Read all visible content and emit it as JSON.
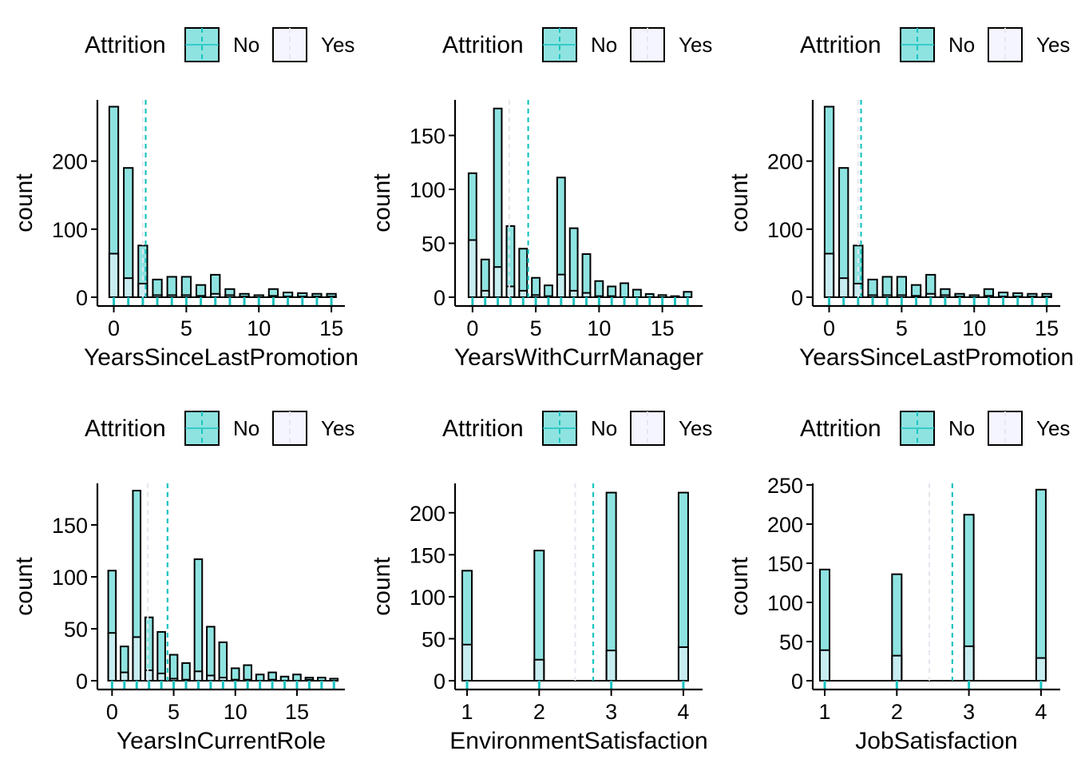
{
  "colors": {
    "no_fill": "#8ee3e0",
    "no_line": "#19c3c0",
    "yes_fill": "#f5f5ff",
    "bar_stroke": "#000000"
  },
  "chart_data": [
    {
      "type": "bar",
      "xlabel": "YearsSinceLastPromotion",
      "ylabel": "count",
      "legend_title": "Attrition",
      "legend_position": "top",
      "grid": false,
      "xlim": [
        -0.8,
        15.6
      ],
      "ylim": [
        0,
        290
      ],
      "x_ticks": [
        0,
        5,
        10,
        15
      ],
      "y_ticks": [
        0,
        100,
        200
      ],
      "x": [
        0,
        1,
        2,
        3,
        4,
        5,
        6,
        7,
        8,
        9,
        10,
        11,
        12,
        13,
        14,
        15
      ],
      "series": [
        {
          "name": "No",
          "values": [
            280,
            190,
            76,
            26,
            30,
            30,
            18,
            33,
            12,
            5,
            3,
            12,
            7,
            6,
            5,
            5
          ],
          "mean": 2.2
        },
        {
          "name": "Yes",
          "values": [
            64,
            28,
            20,
            3,
            3,
            3,
            2,
            5,
            3,
            1,
            0,
            2,
            1,
            1,
            1,
            1
          ],
          "mean": 2.0
        }
      ]
    },
    {
      "type": "bar",
      "xlabel": "YearsWithCurrManager",
      "ylabel": "count",
      "legend_title": "Attrition",
      "legend_position": "top",
      "grid": false,
      "xlim": [
        -1,
        17.8
      ],
      "ylim": [
        0,
        183
      ],
      "x_ticks": [
        0,
        5,
        10,
        15
      ],
      "y_ticks": [
        0,
        50,
        100,
        150
      ],
      "x": [
        0,
        1,
        2,
        3,
        4,
        5,
        6,
        7,
        8,
        9,
        10,
        11,
        12,
        13,
        14,
        15,
        16,
        17
      ],
      "series": [
        {
          "name": "No",
          "values": [
            115,
            35,
            175,
            66,
            45,
            18,
            11,
            111,
            64,
            40,
            15,
            10,
            13,
            7,
            3,
            2,
            1,
            5
          ],
          "mean": 4.4
        },
        {
          "name": "Yes",
          "values": [
            53,
            6,
            28,
            10,
            6,
            2,
            1,
            21,
            6,
            4,
            1,
            1,
            0,
            0,
            0,
            0,
            0,
            0
          ],
          "mean": 2.9
        }
      ]
    },
    {
      "type": "bar",
      "xlabel": "YearsSinceLastPromotion",
      "ylabel": "count",
      "legend_title": "Attrition",
      "legend_position": "top",
      "grid": false,
      "xlim": [
        -0.8,
        15.6
      ],
      "ylim": [
        0,
        290
      ],
      "x_ticks": [
        0,
        5,
        10,
        15
      ],
      "y_ticks": [
        0,
        100,
        200
      ],
      "x": [
        0,
        1,
        2,
        3,
        4,
        5,
        6,
        7,
        8,
        9,
        10,
        11,
        12,
        13,
        14,
        15
      ],
      "series": [
        {
          "name": "No",
          "values": [
            280,
            190,
            76,
            26,
            30,
            30,
            18,
            33,
            12,
            5,
            3,
            12,
            7,
            6,
            5,
            5
          ],
          "mean": 2.2
        },
        {
          "name": "Yes",
          "values": [
            64,
            28,
            20,
            3,
            3,
            3,
            2,
            5,
            3,
            1,
            0,
            2,
            1,
            1,
            1,
            1
          ],
          "mean": 2.0
        }
      ]
    },
    {
      "type": "bar",
      "xlabel": "YearsInCurrentRole",
      "ylabel": "count",
      "legend_title": "Attrition",
      "legend_position": "top",
      "grid": false,
      "xlim": [
        -0.8,
        18.5
      ],
      "ylim": [
        0,
        190
      ],
      "x_ticks": [
        0,
        5,
        10,
        15
      ],
      "y_ticks": [
        0,
        50,
        100,
        150
      ],
      "x": [
        0,
        1,
        2,
        3,
        4,
        5,
        6,
        7,
        8,
        9,
        10,
        11,
        12,
        13,
        14,
        15,
        16,
        17,
        18
      ],
      "series": [
        {
          "name": "No",
          "values": [
            106,
            33,
            183,
            61,
            47,
            25,
            17,
            117,
            52,
            37,
            12,
            15,
            6,
            8,
            4,
            6,
            3,
            3,
            2
          ],
          "mean": 4.5
        },
        {
          "name": "Yes",
          "values": [
            46,
            8,
            42,
            10,
            7,
            2,
            1,
            9,
            5,
            3,
            1,
            1,
            0,
            1,
            0,
            0,
            1,
            0,
            0
          ],
          "mean": 2.9
        }
      ]
    },
    {
      "type": "bar",
      "xlabel": "EnvironmentSatisfaction",
      "ylabel": "count",
      "legend_title": "Attrition",
      "legend_position": "top",
      "grid": false,
      "xlim": [
        0.9,
        4.2
      ],
      "ylim": [
        0,
        235
      ],
      "x_ticks": [
        1,
        2,
        3,
        4
      ],
      "y_ticks": [
        0,
        50,
        100,
        150,
        200
      ],
      "x": [
        1,
        2,
        3,
        4
      ],
      "series": [
        {
          "name": "No",
          "values": [
            131,
            155,
            224,
            224
          ],
          "mean": 2.75
        },
        {
          "name": "Yes",
          "values": [
            43,
            25,
            36,
            40
          ],
          "mean": 2.5
        }
      ]
    },
    {
      "type": "bar",
      "xlabel": "JobSatisfaction",
      "ylabel": "count",
      "legend_title": "Attrition",
      "legend_position": "top",
      "grid": false,
      "xlim": [
        0.9,
        4.2
      ],
      "ylim": [
        0,
        252
      ],
      "x_ticks": [
        1,
        2,
        3,
        4
      ],
      "y_ticks": [
        0,
        50,
        100,
        150,
        200,
        250
      ],
      "x": [
        1,
        2,
        3,
        4
      ],
      "series": [
        {
          "name": "No",
          "values": [
            142,
            136,
            212,
            244
          ],
          "mean": 2.77
        },
        {
          "name": "Yes",
          "values": [
            39,
            32,
            44,
            29
          ],
          "mean": 2.45
        }
      ]
    }
  ]
}
